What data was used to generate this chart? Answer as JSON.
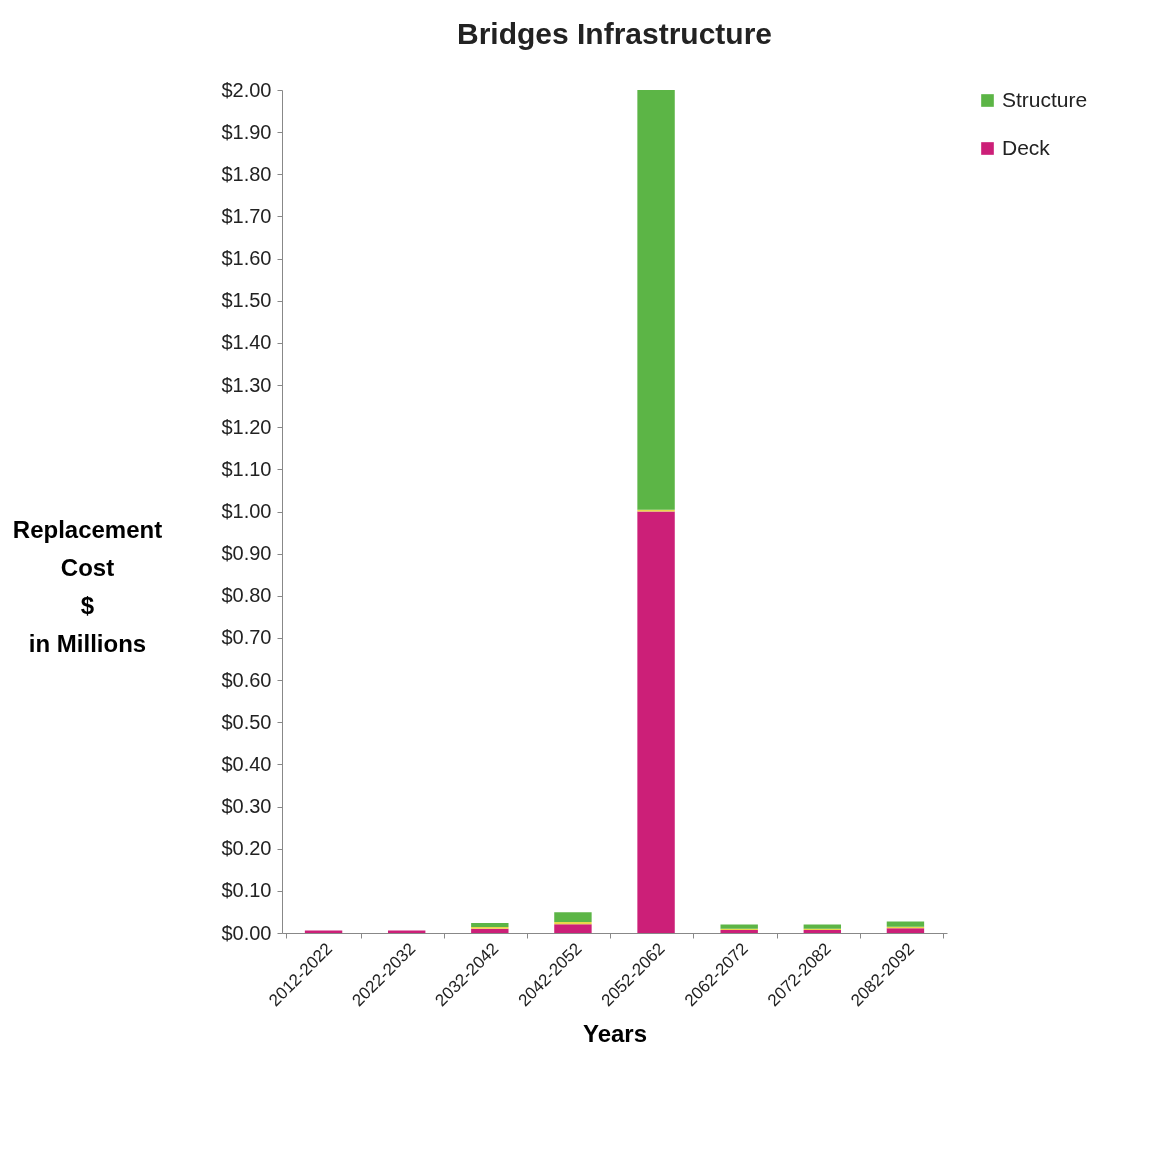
{
  "chart_data": {
    "type": "bar",
    "title": "Bridges Infrastructure",
    "xlabel": "Years",
    "ylabel": "Replacement\nCost\n$\nin Millions",
    "categories": [
      "2012-2022",
      "2022-2032",
      "2032-2042",
      "2042-2052",
      "2052-2062",
      "2062-2072",
      "2072-2082",
      "2082-2092"
    ],
    "stacked": true,
    "series": [
      {
        "name": "Deck",
        "color": "#cc1f78",
        "values": [
          0.006,
          0.006,
          0.01,
          0.021,
          1.0,
          0.007,
          0.007,
          0.011
        ]
      },
      {
        "color": "#e8d84a",
        "values": [
          0,
          0,
          0.004,
          0.005,
          0.004,
          0.003,
          0.003,
          0.004
        ]
      },
      {
        "name": "Structure",
        "color": "#5cb546",
        "values": [
          0,
          0,
          0.01,
          0.023,
          0.996,
          0.01,
          0.01,
          0.012
        ]
      }
    ],
    "ylim": [
      0,
      2
    ],
    "yticks": [
      {
        "value": 0,
        "label": "$0.00"
      },
      {
        "value": 0.1,
        "label": "$0.10"
      },
      {
        "value": 0.2,
        "label": "$0.20"
      },
      {
        "value": 0.3,
        "label": "$0.30"
      },
      {
        "value": 0.4,
        "label": "$0.40"
      },
      {
        "value": 0.5,
        "label": "$0.50"
      },
      {
        "value": 0.6,
        "label": "$0.60"
      },
      {
        "value": 0.7,
        "label": "$0.70"
      },
      {
        "value": 0.8,
        "label": "$0.80"
      },
      {
        "value": 0.9,
        "label": "$0.90"
      },
      {
        "value": 1,
        "label": "$1.00"
      },
      {
        "value": 1.1,
        "label": "$1.10"
      },
      {
        "value": 1.2,
        "label": "$1.20"
      },
      {
        "value": 1.3,
        "label": "$1.30"
      },
      {
        "value": 1.4,
        "label": "$1.40"
      },
      {
        "value": 1.5,
        "label": "$1.50"
      },
      {
        "value": 1.6,
        "label": "$1.60"
      },
      {
        "value": 1.7,
        "label": "$1.70"
      },
      {
        "value": 1.8,
        "label": "$1.80"
      },
      {
        "value": 1.9,
        "label": "$1.90"
      },
      {
        "value": 2,
        "label": "$2.00"
      }
    ],
    "grid": false,
    "legend": "right"
  }
}
